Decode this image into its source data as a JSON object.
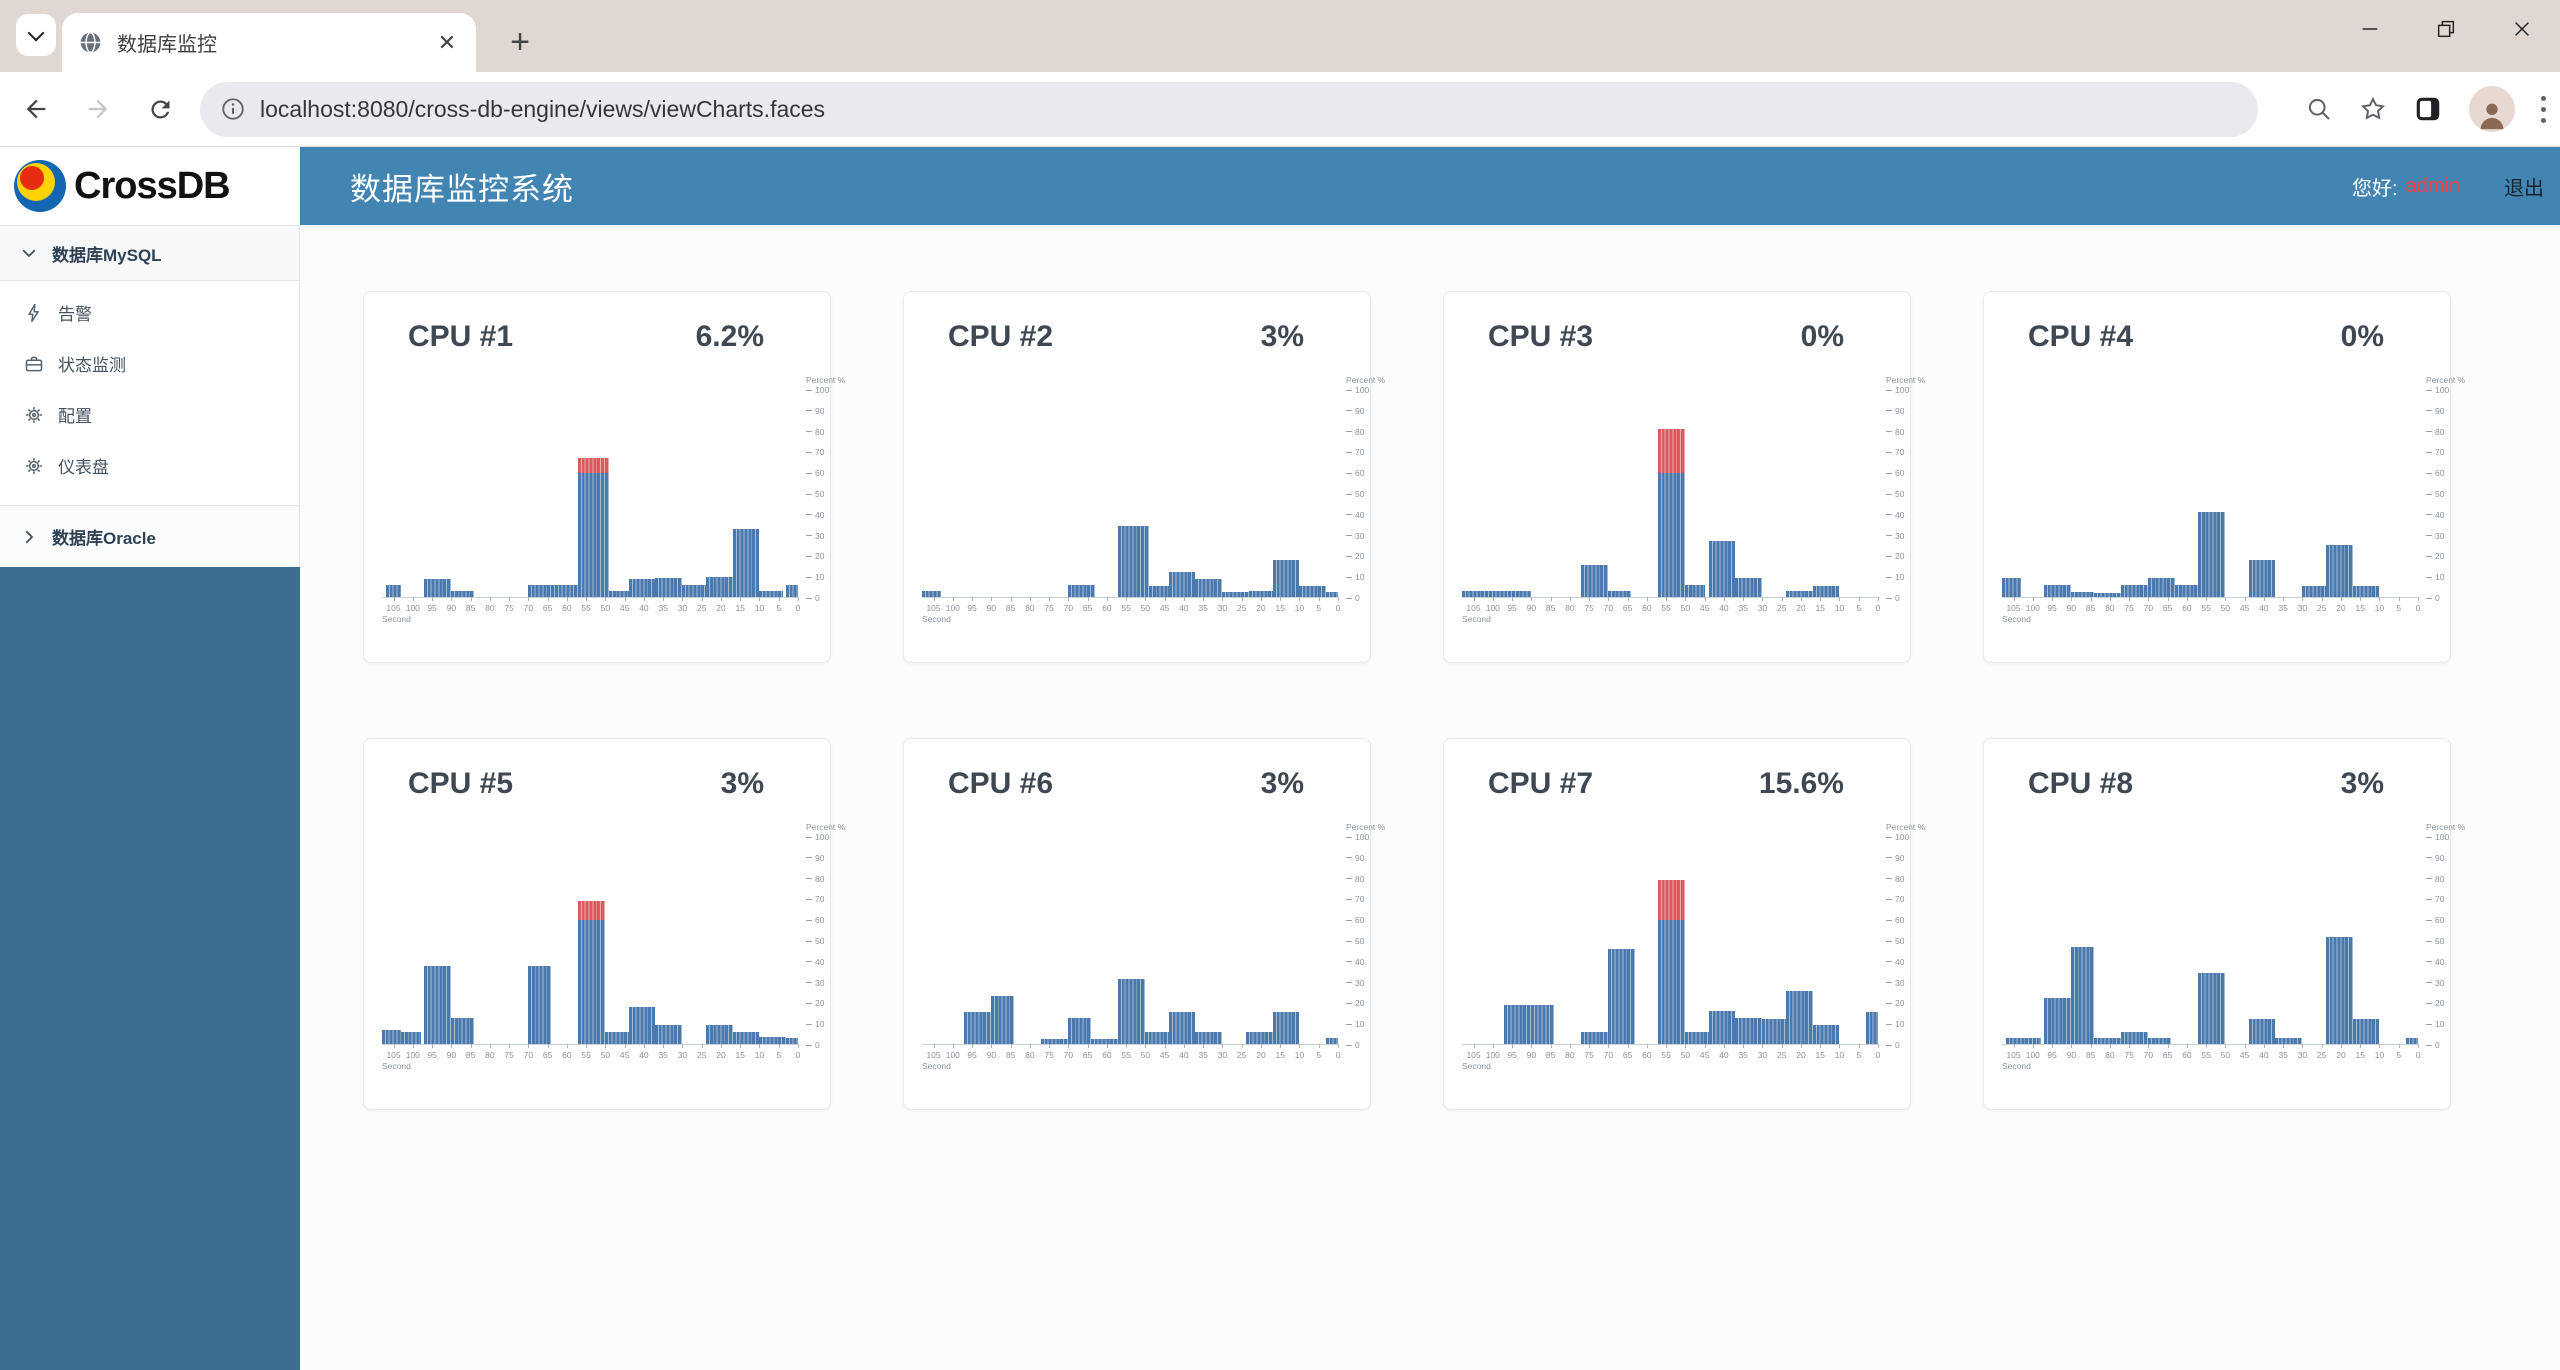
{
  "browser": {
    "tab_title": "数据库监控",
    "url": "localhost:8080/cross-db-engine/views/viewCharts.faces"
  },
  "header": {
    "title": "数据库监控系统",
    "greeting_label": "您好:",
    "username": "admin",
    "logout_label": "退出"
  },
  "sidebar": {
    "logo_text": "CrossDB",
    "sections": [
      {
        "label": "数据库MySQL",
        "expanded": true,
        "items": [
          {
            "label": "告警",
            "icon": "lightning-icon"
          },
          {
            "label": "状态监测",
            "icon": "briefcase-icon"
          },
          {
            "label": "配置",
            "icon": "gear-icon"
          },
          {
            "label": "仪表盘",
            "icon": "gear-icon"
          }
        ]
      },
      {
        "label": "数据库Oracle",
        "expanded": false,
        "items": []
      }
    ]
  },
  "colors": {
    "header_blue": "#4285b3",
    "sidebar_blue": "#3d6e91",
    "bar_blue": "#4a79ae",
    "bar_over_red": "#d95a5a",
    "username_red": "#fa3e3e"
  },
  "chart_data": [
    {
      "type": "bar",
      "title": "CPU #1",
      "current_value": "6.2%",
      "xlabel": "Second",
      "ylabel": "Percent %",
      "ylim": [
        0,
        100
      ],
      "x_ticks": [
        105,
        100,
        95,
        90,
        85,
        80,
        75,
        70,
        65,
        60,
        55,
        50,
        45,
        40,
        35,
        30,
        25,
        20,
        15,
        10,
        5,
        0
      ],
      "y_ticks": [
        0,
        10,
        20,
        30,
        40,
        50,
        60,
        70,
        80,
        90,
        100
      ],
      "threshold_red_above": 60,
      "blocks_format": "[from_second, to_second, percent]",
      "blocks": [
        [
          107,
          103,
          6
        ],
        [
          97,
          90,
          8.5
        ],
        [
          90,
          84,
          3
        ],
        [
          70,
          57,
          6
        ],
        [
          57,
          49,
          67
        ],
        [
          49,
          44,
          3
        ],
        [
          44,
          37,
          8.5
        ],
        [
          37,
          30,
          9
        ],
        [
          30,
          24,
          6
        ],
        [
          24,
          17,
          9.5
        ],
        [
          17,
          10,
          33
        ],
        [
          10,
          4,
          3
        ],
        [
          3,
          0,
          6
        ]
      ]
    },
    {
      "type": "bar",
      "title": "CPU #2",
      "current_value": "3%",
      "xlabel": "Second",
      "ylabel": "Percent %",
      "ylim": [
        0,
        100
      ],
      "x_ticks": [
        105,
        100,
        95,
        90,
        85,
        80,
        75,
        70,
        65,
        60,
        55,
        50,
        45,
        40,
        35,
        30,
        25,
        20,
        15,
        10,
        5,
        0
      ],
      "y_ticks": [
        0,
        10,
        20,
        30,
        40,
        50,
        60,
        70,
        80,
        90,
        100
      ],
      "threshold_red_above": 60,
      "blocks_format": "[from_second, to_second, percent]",
      "blocks": [
        [
          108,
          103,
          3
        ],
        [
          70,
          63,
          6
        ],
        [
          57,
          49,
          34.5
        ],
        [
          49,
          44,
          5.5
        ],
        [
          44,
          37,
          12
        ],
        [
          37,
          30,
          8.5
        ],
        [
          30,
          23,
          2.5
        ],
        [
          23,
          17,
          3
        ],
        [
          17,
          10,
          18
        ],
        [
          10,
          3,
          5.5
        ],
        [
          3,
          0,
          2.5
        ]
      ]
    },
    {
      "type": "bar",
      "title": "CPU #3",
      "current_value": "0%",
      "xlabel": "Second",
      "ylabel": "Percent %",
      "ylim": [
        0,
        100
      ],
      "x_ticks": [
        105,
        100,
        95,
        90,
        85,
        80,
        75,
        70,
        65,
        60,
        55,
        50,
        45,
        40,
        35,
        30,
        25,
        20,
        15,
        10,
        5,
        0
      ],
      "y_ticks": [
        0,
        10,
        20,
        30,
        40,
        50,
        60,
        70,
        80,
        90,
        100
      ],
      "threshold_red_above": 60,
      "blocks_format": "[from_second, to_second, percent]",
      "blocks": [
        [
          108,
          90,
          3
        ],
        [
          77,
          70,
          15.5
        ],
        [
          70,
          64,
          3
        ],
        [
          57,
          50,
          81
        ],
        [
          50,
          45,
          6
        ],
        [
          44,
          37,
          27
        ],
        [
          37,
          30,
          9
        ],
        [
          24,
          17,
          3
        ],
        [
          17,
          10,
          5.5
        ]
      ]
    },
    {
      "type": "bar",
      "title": "CPU #4",
      "current_value": "0%",
      "xlabel": "Second",
      "ylabel": "Percent %",
      "ylim": [
        0,
        100
      ],
      "x_ticks": [
        105,
        100,
        95,
        90,
        85,
        80,
        75,
        70,
        65,
        60,
        55,
        50,
        45,
        40,
        35,
        30,
        25,
        20,
        15,
        10,
        5,
        0
      ],
      "y_ticks": [
        0,
        10,
        20,
        30,
        40,
        50,
        60,
        70,
        80,
        90,
        100
      ],
      "threshold_red_above": 60,
      "blocks_format": "[from_second, to_second, percent]",
      "blocks": [
        [
          108,
          103,
          9
        ],
        [
          97,
          90,
          6
        ],
        [
          90,
          84,
          2.5
        ],
        [
          84,
          77,
          2
        ],
        [
          77,
          70,
          6
        ],
        [
          70,
          63,
          9
        ],
        [
          63,
          57,
          6
        ],
        [
          57,
          50,
          41
        ],
        [
          44,
          37,
          18
        ],
        [
          30,
          24,
          5.5
        ],
        [
          24,
          17,
          25
        ],
        [
          17,
          10,
          5.5
        ]
      ]
    },
    {
      "type": "bar",
      "title": "CPU #5",
      "current_value": "3%",
      "xlabel": "Second",
      "ylabel": "Percent %",
      "ylim": [
        0,
        100
      ],
      "x_ticks": [
        105,
        100,
        95,
        90,
        85,
        80,
        75,
        70,
        65,
        60,
        55,
        50,
        45,
        40,
        35,
        30,
        25,
        20,
        15,
        10,
        5,
        0
      ],
      "y_ticks": [
        0,
        10,
        20,
        30,
        40,
        50,
        60,
        70,
        80,
        90,
        100
      ],
      "threshold_red_above": 60,
      "blocks_format": "[from_second, to_second, percent]",
      "blocks": [
        [
          108,
          103,
          7
        ],
        [
          103,
          98,
          6
        ],
        [
          97,
          90,
          37.5
        ],
        [
          90,
          84,
          12.5
        ],
        [
          70,
          64,
          37.5
        ],
        [
          57,
          50,
          69
        ],
        [
          50,
          44,
          6
        ],
        [
          44,
          37,
          18
        ],
        [
          37,
          30,
          9
        ],
        [
          24,
          17,
          9
        ],
        [
          17,
          10,
          6
        ],
        [
          10,
          3,
          3.5
        ],
        [
          3,
          0,
          3
        ]
      ]
    },
    {
      "type": "bar",
      "title": "CPU #6",
      "current_value": "3%",
      "xlabel": "Second",
      "ylabel": "Percent %",
      "ylim": [
        0,
        100
      ],
      "x_ticks": [
        105,
        100,
        95,
        90,
        85,
        80,
        75,
        70,
        65,
        60,
        55,
        50,
        45,
        40,
        35,
        30,
        25,
        20,
        15,
        10,
        5,
        0
      ],
      "y_ticks": [
        0,
        10,
        20,
        30,
        40,
        50,
        60,
        70,
        80,
        90,
        100
      ],
      "threshold_red_above": 60,
      "blocks_format": "[from_second, to_second, percent]",
      "blocks": [
        [
          97,
          90,
          15.5
        ],
        [
          90,
          84,
          23
        ],
        [
          77,
          70,
          2.5
        ],
        [
          70,
          64,
          12.5
        ],
        [
          64,
          57,
          2.5
        ],
        [
          57,
          50,
          31.5
        ],
        [
          50,
          44,
          6
        ],
        [
          44,
          37,
          15.5
        ],
        [
          37,
          30,
          6
        ],
        [
          24,
          17,
          6
        ],
        [
          17,
          10,
          15.5
        ],
        [
          3,
          0,
          3
        ]
      ]
    },
    {
      "type": "bar",
      "title": "CPU #7",
      "current_value": "15.6%",
      "xlabel": "Second",
      "ylabel": "Percent %",
      "ylim": [
        0,
        100
      ],
      "x_ticks": [
        105,
        100,
        95,
        90,
        85,
        80,
        75,
        70,
        65,
        60,
        55,
        50,
        45,
        40,
        35,
        30,
        25,
        20,
        15,
        10,
        5,
        0
      ],
      "y_ticks": [
        0,
        10,
        20,
        30,
        40,
        50,
        60,
        70,
        80,
        90,
        100
      ],
      "threshold_red_above": 60,
      "blocks_format": "[from_second, to_second, percent]",
      "blocks": [
        [
          97,
          84,
          19
        ],
        [
          77,
          70,
          6
        ],
        [
          70,
          63,
          46
        ],
        [
          57,
          50,
          79
        ],
        [
          50,
          44,
          6
        ],
        [
          44,
          37,
          16
        ],
        [
          37,
          30,
          12.5
        ],
        [
          30,
          24,
          12
        ],
        [
          24,
          17,
          25.5
        ],
        [
          17,
          10,
          9
        ],
        [
          3,
          0,
          15.5
        ]
      ]
    },
    {
      "type": "bar",
      "title": "CPU #8",
      "current_value": "3%",
      "xlabel": "Second",
      "ylabel": "Percent %",
      "ylim": [
        0,
        100
      ],
      "x_ticks": [
        105,
        100,
        95,
        90,
        85,
        80,
        75,
        70,
        65,
        60,
        55,
        50,
        45,
        40,
        35,
        30,
        25,
        20,
        15,
        10,
        5,
        0
      ],
      "y_ticks": [
        0,
        10,
        20,
        30,
        40,
        50,
        60,
        70,
        80,
        90,
        100
      ],
      "threshold_red_above": 60,
      "blocks_format": "[from_second, to_second, percent]",
      "blocks": [
        [
          107,
          98,
          3
        ],
        [
          97,
          90,
          22
        ],
        [
          90,
          84,
          47
        ],
        [
          84,
          77,
          3
        ],
        [
          77,
          70,
          6
        ],
        [
          70,
          64,
          3
        ],
        [
          57,
          50,
          34.5
        ],
        [
          44,
          37,
          12
        ],
        [
          37,
          30,
          3
        ],
        [
          24,
          17,
          51.5
        ],
        [
          17,
          10,
          12
        ],
        [
          3,
          0,
          3
        ]
      ]
    }
  ]
}
